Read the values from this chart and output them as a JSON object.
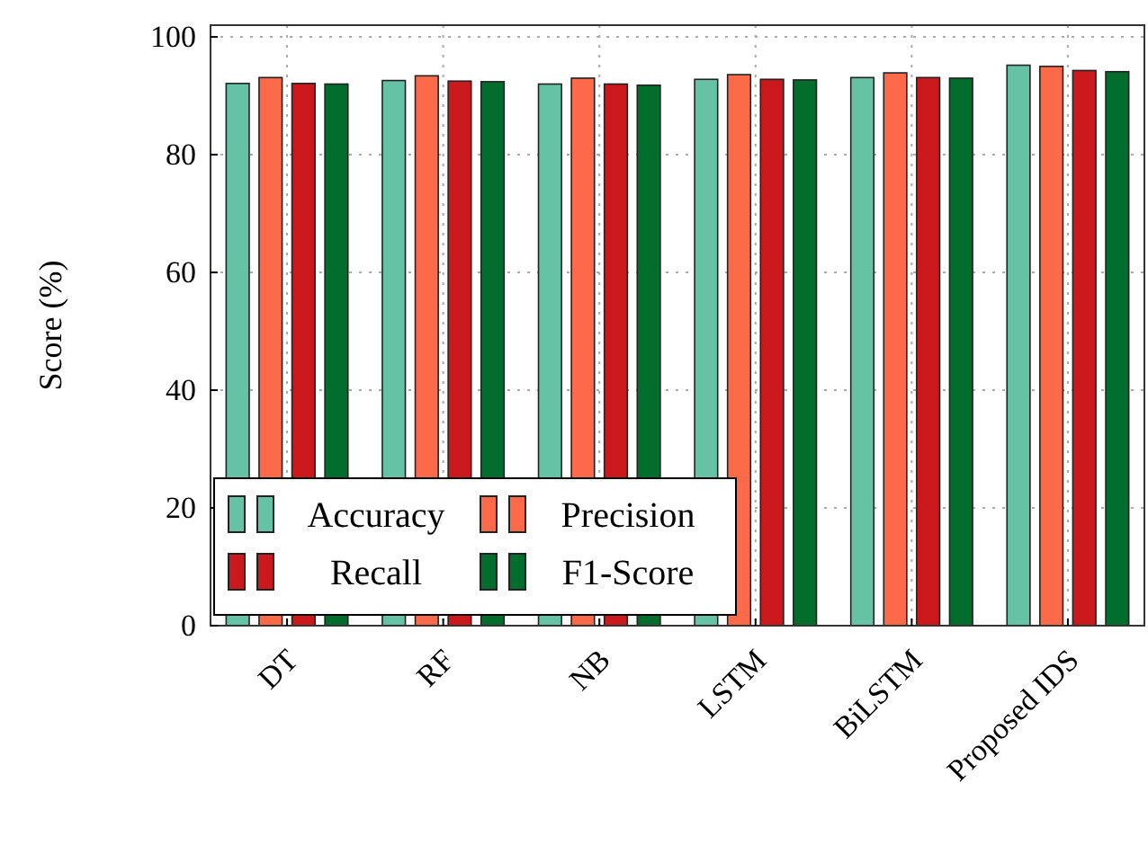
{
  "chart_data": {
    "type": "bar",
    "ylabel": "Score (%)",
    "categories": [
      "DT",
      "RF",
      "NB",
      "LSTM",
      "BiLSTM",
      "Proposed IDS"
    ],
    "series": [
      {
        "name": "Accuracy",
        "color": "#66c2a5",
        "values": [
          92.1,
          92.6,
          92.0,
          92.8,
          93.1,
          95.2
        ]
      },
      {
        "name": "Precision",
        "color": "#fc6a4a",
        "values": [
          93.1,
          93.4,
          93.0,
          93.6,
          93.9,
          95.0
        ]
      },
      {
        "name": "Recall",
        "color": "#cb181d",
        "values": [
          92.1,
          92.5,
          92.0,
          92.8,
          93.1,
          94.3
        ]
      },
      {
        "name": "F1-Score",
        "color": "#006d2c",
        "values": [
          92.0,
          92.4,
          91.8,
          92.7,
          93.0,
          94.1
        ]
      }
    ],
    "ylim": [
      0,
      102
    ],
    "yticks": [
      0,
      20,
      40,
      60,
      80,
      100
    ],
    "grid": true,
    "legend": "bottom left"
  }
}
